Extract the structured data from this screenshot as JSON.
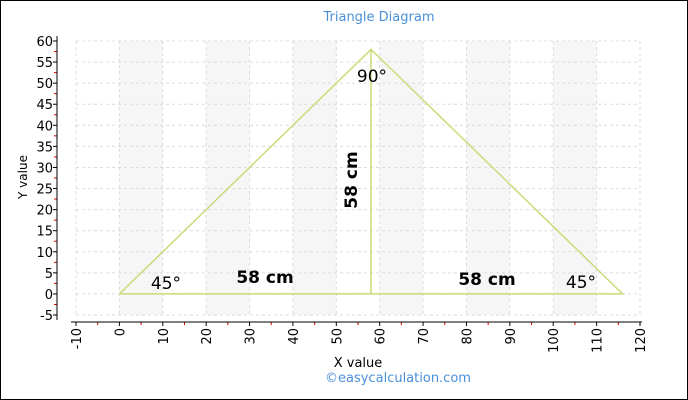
{
  "chart_data": {
    "type": "line",
    "title": "Triangle Diagram",
    "x_label": "X value",
    "y_label": "Y value",
    "footer": "©easycalculation.com",
    "series": [
      {
        "color": "#c8dc78",
        "x": [
          0,
          58,
          116,
          0
        ],
        "values": [
          0,
          58,
          0,
          0
        ]
      },
      {
        "color": "#c8dc78",
        "x": [
          58,
          58
        ],
        "values": [
          58,
          0
        ]
      }
    ],
    "annotations": [
      "90°",
      "45°",
      "45°",
      "58 cm",
      "58 cm",
      "58 cm"
    ],
    "xlim": [
      -10,
      120
    ],
    "xticks": [
      -10,
      0,
      10,
      20,
      30,
      40,
      50,
      60,
      70,
      80,
      90,
      100,
      110,
      120
    ],
    "ylim": [
      -5,
      60
    ],
    "yticks": [
      -5,
      0,
      5,
      10,
      15,
      20,
      25,
      30,
      35,
      40,
      45,
      50,
      55,
      60
    ],
    "grid": true
  }
}
